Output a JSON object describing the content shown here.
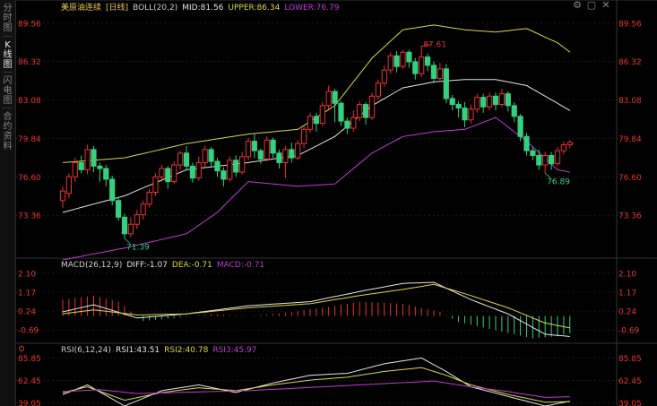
{
  "sidebar": {
    "tabs": [
      {
        "label": "分时图",
        "active": false
      },
      {
        "label": "K线图",
        "active": true
      },
      {
        "label": "闪电图",
        "active": false
      },
      {
        "label": "合约资料",
        "active": false
      }
    ]
  },
  "main_header": {
    "title": "美原油连续",
    "period": "[日线]",
    "indicator": "BOLL(20,2)",
    "mid": "MID:81.56",
    "upper": "UPPER:86.34",
    "lower": "LOWER:76.79"
  },
  "macd_header": {
    "name": "MACD(26,12,9)",
    "diff": "DIFF:-1.07",
    "dea": "DEA:-0.71",
    "macd": "MACD:-0.71"
  },
  "rsi_header": {
    "name": "RSI(6,12,24)",
    "rsi1": "RSI1:43.51",
    "rsi2": "RSI2:40.78",
    "rsi3": "RSI3:45.97"
  },
  "colors": {
    "up": "#e8352f",
    "down": "#35d07f",
    "upper_band": "#d8d84a",
    "mid_band": "#e6e6e6",
    "lower_band": "#c23bd4",
    "axis_label": "#e8352f",
    "grid": "#2a2a2a"
  },
  "chart_data": [
    {
      "type": "candlestick",
      "ylim": [
        70.2,
        90.6
      ],
      "y_ticks": [
        89.56,
        86.32,
        83.08,
        79.84,
        76.6,
        73.36
      ],
      "annotations": {
        "high": "87.61",
        "lows": [
          "71.39",
          "76.89"
        ]
      },
      "candles": [
        [
          74.6,
          75.4,
          74.0,
          75.8
        ],
        [
          75.2,
          76.6,
          74.8,
          76.9
        ],
        [
          76.6,
          77.8,
          76.2,
          78.2
        ],
        [
          77.8,
          77.2,
          76.9,
          78.4
        ],
        [
          77.2,
          78.9,
          76.8,
          79.3
        ],
        [
          78.9,
          77.5,
          77.0,
          79.2
        ],
        [
          77.5,
          77.3,
          76.2,
          77.8
        ],
        [
          77.3,
          76.4,
          75.8,
          77.6
        ],
        [
          76.4,
          74.6,
          74.2,
          76.7
        ],
        [
          74.6,
          73.2,
          72.9,
          74.8
        ],
        [
          73.2,
          71.8,
          71.39,
          73.5
        ],
        [
          71.8,
          72.6,
          71.5,
          73.2
        ],
        [
          72.6,
          73.4,
          72.2,
          73.8
        ],
        [
          73.4,
          74.3,
          73.0,
          74.6
        ],
        [
          74.3,
          75.3,
          74.0,
          75.6
        ],
        [
          75.3,
          76.6,
          75.0,
          76.9
        ],
        [
          76.6,
          77.3,
          76.2,
          77.6
        ],
        [
          77.3,
          76.2,
          75.6,
          77.5
        ],
        [
          76.2,
          77.6,
          76.0,
          77.9
        ],
        [
          77.6,
          78.6,
          77.2,
          78.8
        ],
        [
          78.6,
          77.5,
          77.2,
          79.2
        ],
        [
          77.5,
          76.5,
          76.1,
          77.8
        ],
        [
          76.5,
          77.8,
          76.3,
          78.3
        ],
        [
          77.8,
          78.9,
          77.4,
          79.2
        ],
        [
          78.9,
          77.9,
          77.5,
          79.1
        ],
        [
          77.9,
          77.1,
          76.6,
          78.2
        ],
        [
          77.1,
          76.4,
          75.8,
          77.4
        ],
        [
          76.4,
          78.0,
          76.2,
          78.3
        ],
        [
          78.0,
          77.0,
          76.6,
          78.4
        ],
        [
          77.0,
          78.3,
          76.8,
          78.7
        ],
        [
          78.3,
          79.6,
          78.0,
          79.9
        ],
        [
          79.6,
          78.8,
          78.2,
          80.2
        ],
        [
          78.8,
          78.1,
          77.7,
          79.0
        ],
        [
          78.1,
          79.7,
          77.9,
          80.0
        ],
        [
          79.7,
          78.6,
          78.2,
          79.9
        ],
        [
          78.6,
          77.8,
          77.3,
          78.9
        ],
        [
          77.8,
          78.9,
          76.5,
          79.2
        ],
        [
          78.9,
          78.2,
          77.8,
          79.5
        ],
        [
          78.2,
          79.4,
          78.0,
          79.7
        ],
        [
          79.4,
          80.6,
          79.0,
          80.9
        ],
        [
          80.6,
          81.7,
          80.3,
          82.0
        ],
        [
          81.7,
          81.1,
          80.4,
          82.0
        ],
        [
          81.1,
          82.6,
          80.9,
          82.9
        ],
        [
          82.6,
          83.8,
          82.3,
          84.3
        ],
        [
          83.8,
          82.8,
          81.2,
          84.0
        ],
        [
          82.8,
          81.3,
          80.9,
          83.0
        ],
        [
          81.3,
          80.7,
          80.2,
          81.6
        ],
        [
          80.7,
          81.6,
          80.4,
          82.2
        ],
        [
          81.6,
          82.7,
          81.3,
          83.0
        ],
        [
          82.7,
          81.6,
          81.0,
          82.9
        ],
        [
          81.6,
          83.4,
          81.4,
          83.7
        ],
        [
          83.4,
          84.5,
          83.1,
          84.8
        ],
        [
          84.5,
          85.6,
          84.2,
          86.0
        ],
        [
          85.6,
          86.8,
          85.3,
          87.1
        ],
        [
          86.8,
          85.9,
          85.4,
          87.2
        ],
        [
          85.9,
          87.1,
          85.7,
          87.3
        ],
        [
          87.1,
          86.3,
          85.8,
          87.3
        ],
        [
          86.3,
          85.3,
          84.8,
          86.6
        ],
        [
          85.3,
          86.7,
          85.0,
          87.61
        ],
        [
          86.7,
          86.0,
          85.5,
          87.0
        ],
        [
          86.0,
          84.9,
          84.5,
          86.3
        ],
        [
          84.9,
          85.7,
          84.6,
          86.2
        ],
        [
          85.7,
          83.2,
          82.8,
          86.1
        ],
        [
          83.2,
          82.7,
          82.2,
          83.5
        ],
        [
          82.7,
          82.4,
          81.6,
          83.0
        ],
        [
          82.4,
          81.4,
          80.8,
          82.9
        ],
        [
          81.4,
          82.3,
          81.1,
          82.7
        ],
        [
          82.3,
          83.3,
          82.0,
          83.6
        ],
        [
          83.3,
          82.5,
          82.0,
          83.6
        ],
        [
          82.5,
          83.4,
          82.2,
          83.7
        ],
        [
          83.4,
          82.7,
          82.2,
          83.7
        ],
        [
          82.7,
          83.6,
          82.5,
          84.0
        ],
        [
          83.6,
          82.6,
          82.1,
          83.8
        ],
        [
          82.6,
          81.7,
          81.2,
          82.9
        ],
        [
          81.7,
          80.0,
          79.6,
          81.9
        ],
        [
          80.0,
          78.8,
          78.4,
          80.3
        ],
        [
          78.8,
          78.4,
          78.0,
          79.1
        ],
        [
          78.4,
          77.6,
          77.2,
          78.9
        ],
        [
          77.6,
          78.4,
          76.89,
          78.7
        ],
        [
          78.4,
          77.7,
          77.2,
          78.7
        ],
        [
          77.7,
          78.8,
          77.5,
          79.1
        ],
        [
          78.8,
          79.3,
          78.5,
          79.6
        ],
        [
          79.3,
          79.5,
          79.0,
          79.7
        ]
      ],
      "boll": {
        "upper_keypoints": [
          [
            0,
            77.8
          ],
          [
            10,
            78.2
          ],
          [
            20,
            79.4
          ],
          [
            30,
            80.2
          ],
          [
            38,
            80.6
          ],
          [
            44,
            82.6
          ],
          [
            50,
            86.6
          ],
          [
            55,
            89.0
          ],
          [
            60,
            89.4
          ],
          [
            65,
            89.0
          ],
          [
            70,
            88.8
          ],
          [
            75,
            89.1
          ],
          [
            80,
            87.9
          ],
          [
            84,
            86.34
          ]
        ],
        "mid_keypoints": [
          [
            0,
            73.6
          ],
          [
            10,
            75.0
          ],
          [
            20,
            77.2
          ],
          [
            30,
            77.8
          ],
          [
            38,
            78.4
          ],
          [
            44,
            80.0
          ],
          [
            50,
            82.6
          ],
          [
            55,
            84.1
          ],
          [
            60,
            84.6
          ],
          [
            65,
            84.8
          ],
          [
            70,
            84.8
          ],
          [
            75,
            84.3
          ],
          [
            80,
            82.8
          ],
          [
            84,
            81.56
          ]
        ],
        "lower_keypoints": [
          [
            0,
            69.6
          ],
          [
            10,
            70.6
          ],
          [
            20,
            71.8
          ],
          [
            25,
            73.6
          ],
          [
            30,
            76.2
          ],
          [
            38,
            75.8
          ],
          [
            44,
            76.0
          ],
          [
            50,
            78.6
          ],
          [
            55,
            80.0
          ],
          [
            60,
            80.4
          ],
          [
            65,
            80.6
          ],
          [
            70,
            81.6
          ],
          [
            75,
            79.6
          ],
          [
            80,
            77.2
          ],
          [
            84,
            76.79
          ]
        ]
      }
    },
    {
      "type": "macd",
      "ylim": [
        -1.3,
        2.4
      ],
      "y_ticks": [
        2.1,
        1.17,
        0.24,
        -0.69
      ],
      "diff_keypoints": [
        [
          0,
          0.2
        ],
        [
          5,
          0.55
        ],
        [
          12,
          -0.1
        ],
        [
          20,
          0.1
        ],
        [
          30,
          0.5
        ],
        [
          40,
          0.7
        ],
        [
          48,
          1.2
        ],
        [
          55,
          1.6
        ],
        [
          60,
          1.65
        ],
        [
          66,
          0.8
        ],
        [
          72,
          0.1
        ],
        [
          78,
          -0.9
        ],
        [
          84,
          -1.07
        ]
      ],
      "dea_keypoints": [
        [
          0,
          0.1
        ],
        [
          5,
          0.3
        ],
        [
          12,
          0.05
        ],
        [
          20,
          0.1
        ],
        [
          30,
          0.4
        ],
        [
          40,
          0.6
        ],
        [
          48,
          1.0
        ],
        [
          55,
          1.3
        ],
        [
          60,
          1.55
        ],
        [
          66,
          1.0
        ],
        [
          72,
          0.4
        ],
        [
          78,
          -0.35
        ],
        [
          84,
          -0.71
        ]
      ],
      "hist_keypoints": [
        [
          0,
          0.8
        ],
        [
          5,
          1.0
        ],
        [
          9,
          0.7
        ],
        [
          13,
          -0.25
        ],
        [
          18,
          -0.1
        ],
        [
          24,
          0.1
        ],
        [
          30,
          0.0
        ],
        [
          36,
          0.15
        ],
        [
          42,
          0.4
        ],
        [
          48,
          0.7
        ],
        [
          55,
          0.6
        ],
        [
          61,
          0.2
        ],
        [
          64,
          -0.3
        ],
        [
          70,
          -0.7
        ],
        [
          76,
          -1.1
        ],
        [
          80,
          -1.0
        ],
        [
          84,
          -0.71
        ]
      ]
    },
    {
      "type": "rsi",
      "ylim": [
        36,
        92
      ],
      "y_ticks": [
        85.85,
        62.45,
        39.05
      ],
      "rsi1_keypoints": [
        [
          0,
          48
        ],
        [
          4,
          58
        ],
        [
          10,
          36
        ],
        [
          16,
          52
        ],
        [
          22,
          58
        ],
        [
          28,
          50
        ],
        [
          34,
          60
        ],
        [
          40,
          68
        ],
        [
          46,
          70
        ],
        [
          52,
          80
        ],
        [
          58,
          86
        ],
        [
          62,
          72
        ],
        [
          66,
          56
        ],
        [
          72,
          46
        ],
        [
          78,
          36
        ],
        [
          84,
          43.5
        ]
      ],
      "rsi2_keypoints": [
        [
          0,
          50
        ],
        [
          4,
          56
        ],
        [
          10,
          42
        ],
        [
          16,
          50
        ],
        [
          22,
          55
        ],
        [
          28,
          52
        ],
        [
          34,
          58
        ],
        [
          40,
          63
        ],
        [
          46,
          66
        ],
        [
          52,
          72
        ],
        [
          58,
          76
        ],
        [
          62,
          68
        ],
        [
          66,
          58
        ],
        [
          72,
          48
        ],
        [
          78,
          40
        ],
        [
          84,
          40.8
        ]
      ],
      "rsi3_keypoints": [
        [
          0,
          51
        ],
        [
          6,
          53
        ],
        [
          12,
          49
        ],
        [
          18,
          50
        ],
        [
          24,
          51
        ],
        [
          30,
          52
        ],
        [
          36,
          54
        ],
        [
          42,
          56
        ],
        [
          48,
          58
        ],
        [
          54,
          60
        ],
        [
          60,
          62
        ],
        [
          66,
          56
        ],
        [
          72,
          51
        ],
        [
          78,
          45
        ],
        [
          84,
          46.0
        ]
      ]
    }
  ]
}
